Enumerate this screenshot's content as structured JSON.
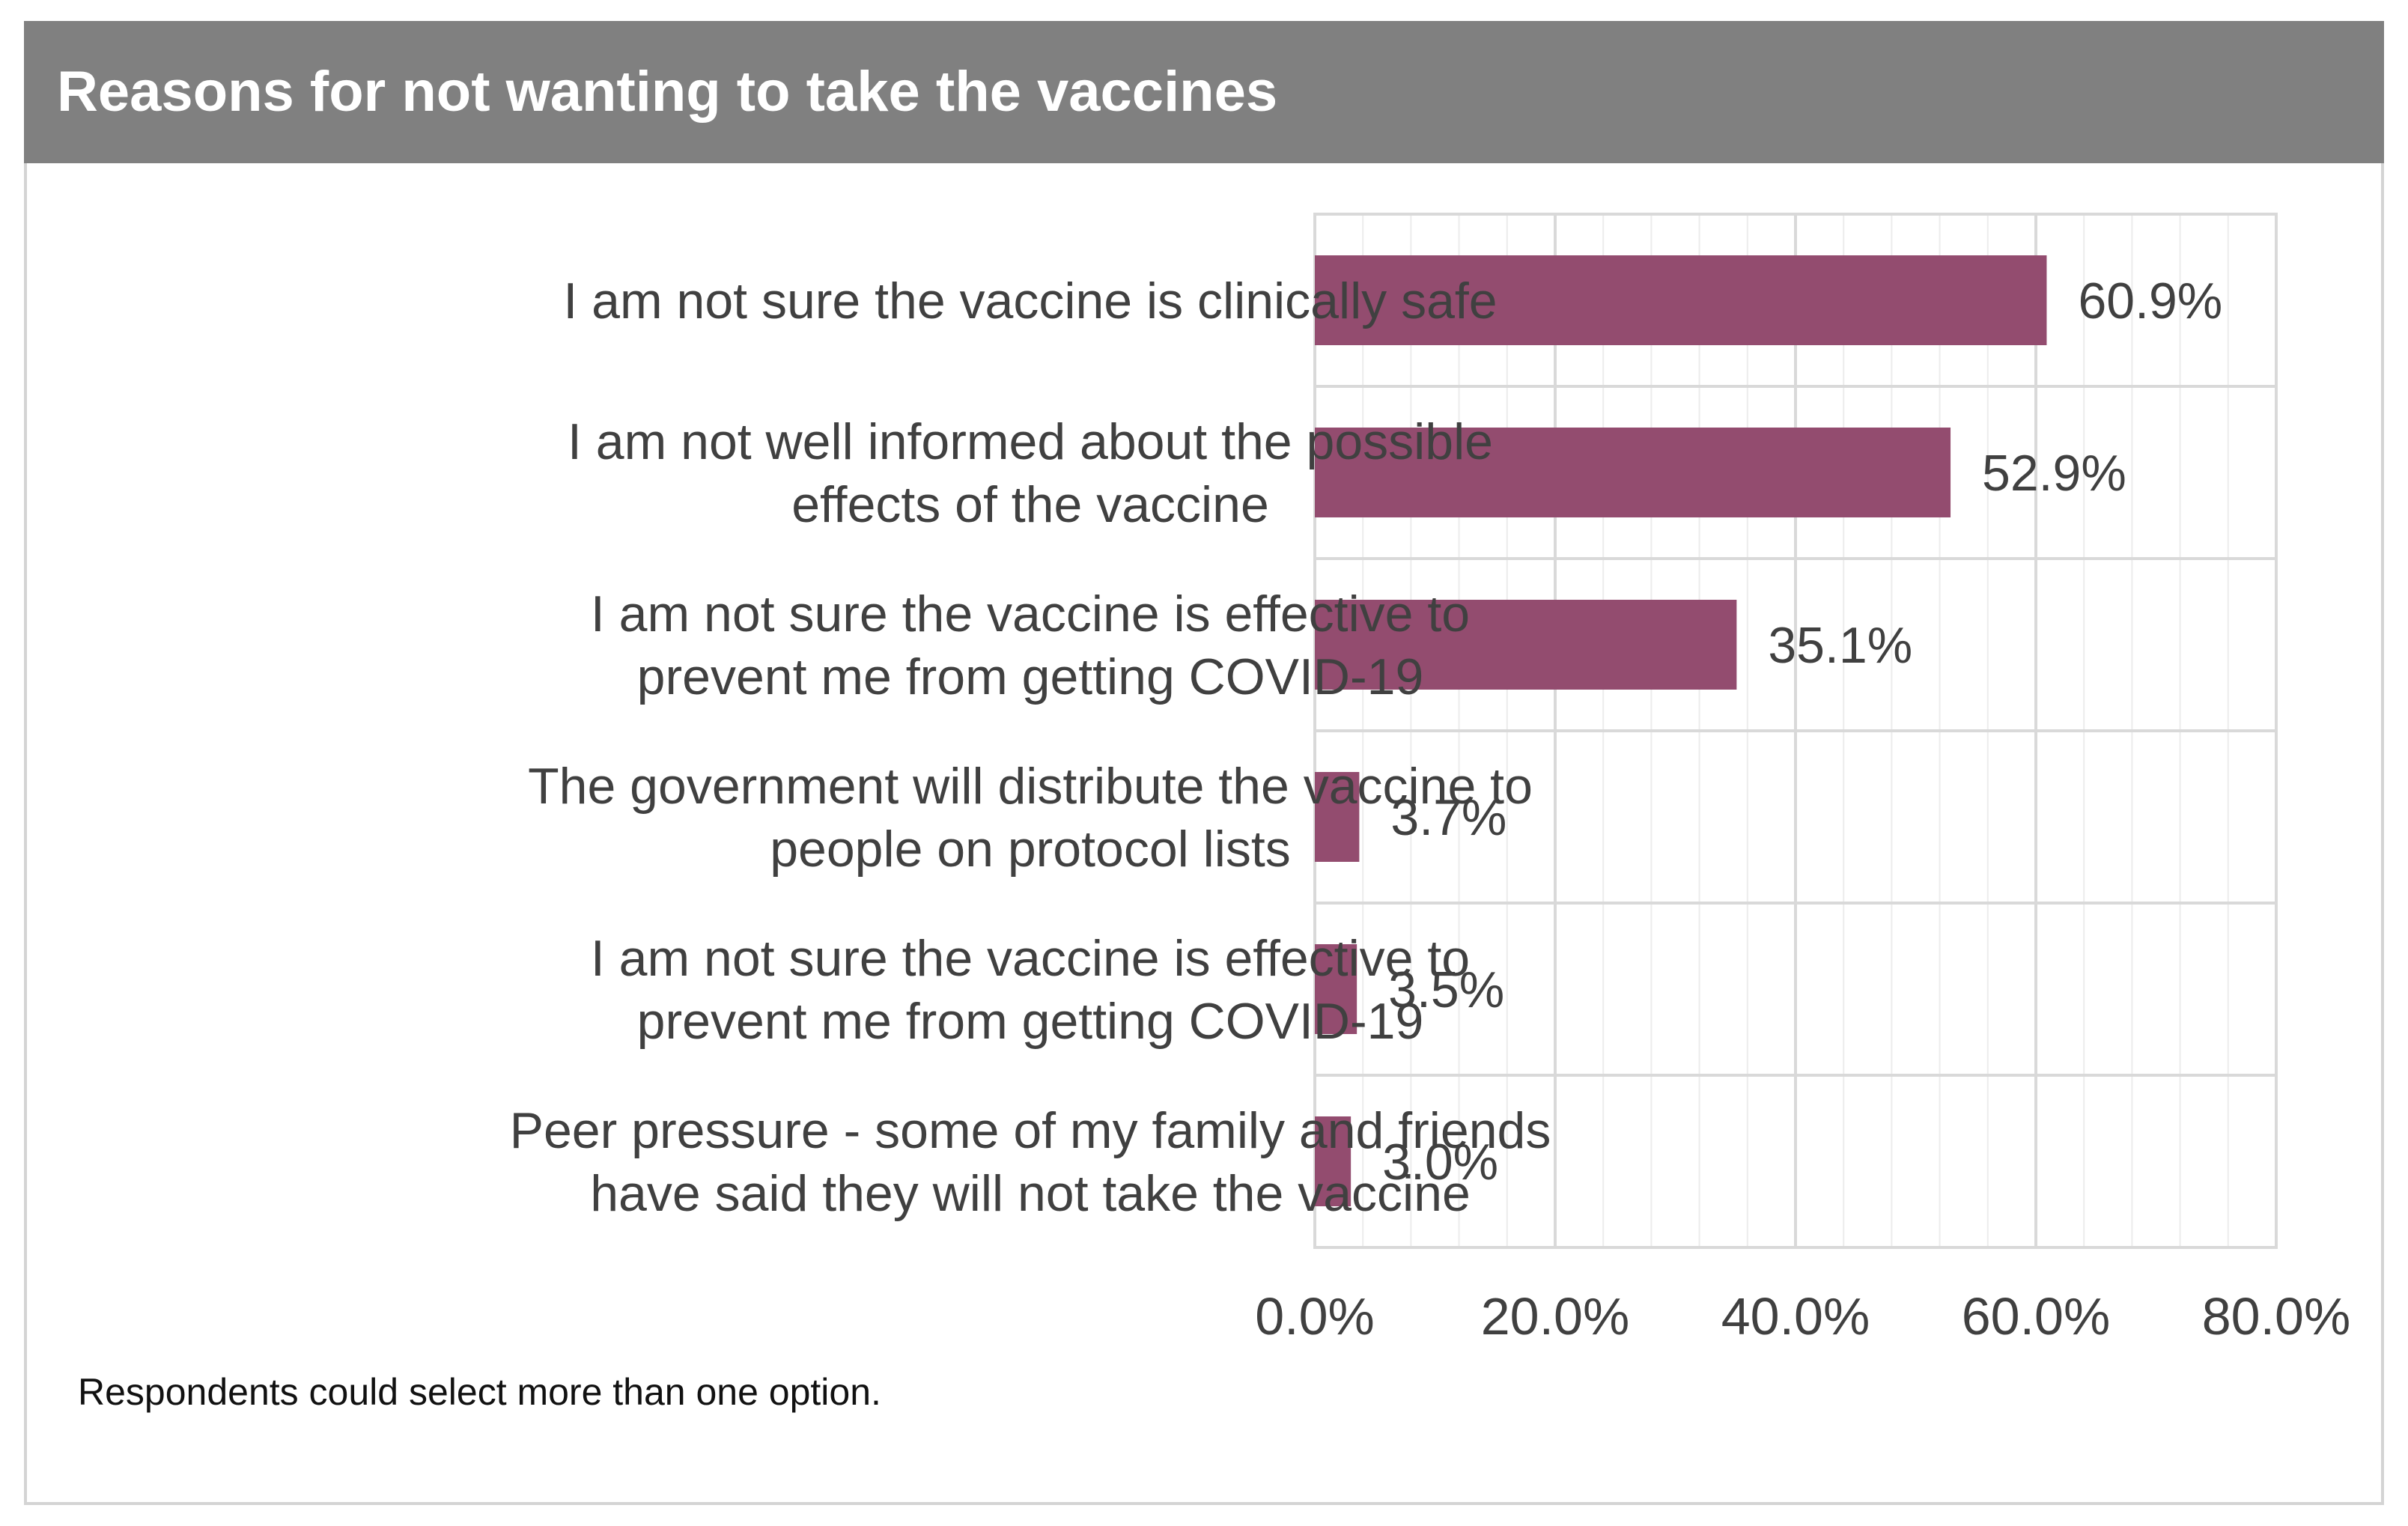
{
  "header": {
    "title": "Reasons for not wanting to take the vaccines"
  },
  "footnote": "Respondents  could select more than one option.",
  "colors": {
    "bar": "#934C6F",
    "title_bg": "#808080",
    "grid": "#d9d9d9",
    "text": "#404040"
  },
  "chart_data": {
    "type": "bar",
    "orientation": "horizontal",
    "title": "Reasons for not wanting to take the vaccines",
    "categories": [
      [
        "I am not sure the vaccine is clinically safe"
      ],
      [
        "I am not well informed about the possible",
        "effects of the vaccine"
      ],
      [
        "I am not sure the vaccine is effective to",
        "prevent me from getting COVID-19"
      ],
      [
        "The government will distribute the vaccine to",
        "people on protocol lists"
      ],
      [
        "I am not sure the vaccine is effective to",
        "prevent me from getting COVID-19"
      ],
      [
        "Peer pressure - some of my family and friends",
        "have said they will not take the vaccine"
      ]
    ],
    "values": [
      60.9,
      52.9,
      35.1,
      3.7,
      3.5,
      3.0
    ],
    "value_labels": [
      "60.9%",
      "52.9%",
      "35.1%",
      "3.7%",
      "3.5%",
      "3.0%"
    ],
    "xlim": [
      0,
      80
    ],
    "x_ticks": [
      0,
      20,
      40,
      60,
      80
    ],
    "x_tick_labels": [
      "0.0%",
      "20.0%",
      "40.0%",
      "60.0%",
      "80.0%"
    ],
    "minor_grid_step": 4,
    "grid": true,
    "xlabel": "",
    "ylabel": ""
  }
}
